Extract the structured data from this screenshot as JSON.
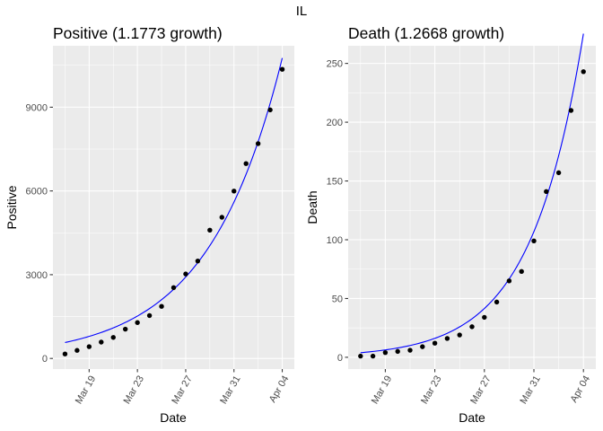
{
  "suptitle": "IL",
  "colors": {
    "fit": "#0000ff",
    "points": "#000000",
    "panel": "#ebebeb"
  },
  "chart_data": [
    {
      "type": "scatter",
      "title": "Positive (1.1773 growth)",
      "xlabel": "Date",
      "ylabel": "Positive",
      "x": [
        "2020-03-17",
        "2020-03-18",
        "2020-03-19",
        "2020-03-20",
        "2020-03-21",
        "2020-03-22",
        "2020-03-23",
        "2020-03-24",
        "2020-03-25",
        "2020-03-26",
        "2020-03-27",
        "2020-03-28",
        "2020-03-29",
        "2020-03-30",
        "2020-03-31",
        "2020-04-01",
        "2020-04-02",
        "2020-04-03",
        "2020-04-04"
      ],
      "values": [
        160,
        288,
        422,
        585,
        753,
        1049,
        1285,
        1535,
        1865,
        2538,
        3026,
        3491,
        4596,
        5057,
        5994,
        6980,
        7695,
        8904,
        10357
      ],
      "fit": {
        "growth": 1.1773,
        "start_value": 570
      },
      "xlim": [
        "2020-03-16",
        "2020-04-05"
      ],
      "ylim": [
        -380,
        11200
      ],
      "xticks": [
        "2020-03-19",
        "2020-03-23",
        "2020-03-27",
        "2020-03-31",
        "2020-04-04"
      ],
      "xtick_labels": [
        "Mar 19",
        "Mar 23",
        "Mar 27",
        "Mar 31",
        "Apr 04"
      ],
      "yticks": [
        0,
        3000,
        6000,
        9000
      ],
      "ytick_labels": [
        "0",
        "3000",
        "6000",
        "9000"
      ],
      "grid": true,
      "legend": "none"
    },
    {
      "type": "scatter",
      "title": "Death (1.2668 growth)",
      "xlabel": "Date",
      "ylabel": "Death",
      "x": [
        "2020-03-17",
        "2020-03-18",
        "2020-03-19",
        "2020-03-20",
        "2020-03-21",
        "2020-03-22",
        "2020-03-23",
        "2020-03-24",
        "2020-03-25",
        "2020-03-26",
        "2020-03-27",
        "2020-03-28",
        "2020-03-29",
        "2020-03-30",
        "2020-03-31",
        "2020-04-01",
        "2020-04-02",
        "2020-04-03",
        "2020-04-04"
      ],
      "values": [
        1,
        1,
        4,
        5,
        6,
        9,
        12,
        16,
        19,
        26,
        34,
        47,
        65,
        73,
        99,
        141,
        157,
        210,
        243
      ],
      "fit": {
        "growth": 1.2668,
        "start_value": 3.9
      },
      "xlim": [
        "2020-03-16",
        "2020-04-05"
      ],
      "ylim": [
        -10,
        265
      ],
      "xticks": [
        "2020-03-19",
        "2020-03-23",
        "2020-03-27",
        "2020-03-31",
        "2020-04-04"
      ],
      "xtick_labels": [
        "Mar 19",
        "Mar 23",
        "Mar 27",
        "Mar 31",
        "Apr 04"
      ],
      "yticks": [
        0,
        50,
        100,
        150,
        200,
        250
      ],
      "ytick_labels": [
        "0",
        "50",
        "100",
        "150",
        "200",
        "250"
      ],
      "grid": true,
      "legend": "none"
    }
  ]
}
